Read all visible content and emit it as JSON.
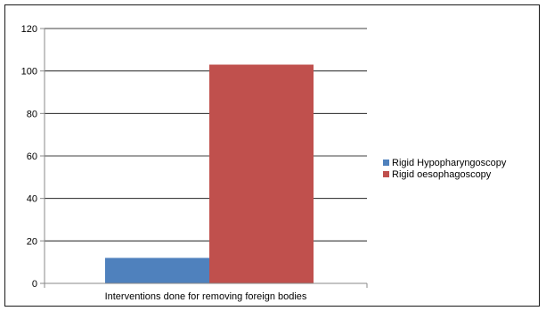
{
  "chart_data": {
    "type": "bar",
    "categories": [
      "Interventions done for removing foreign bodies"
    ],
    "series": [
      {
        "name": "Rigid Hypopharyngoscopy",
        "values": [
          12
        ],
        "color": "#4f81bd"
      },
      {
        "name": "Rigid oesophagoscopy",
        "values": [
          103
        ],
        "color": "#c0504d"
      }
    ],
    "ylim": [
      0,
      120
    ],
    "yticks": [
      0,
      20,
      40,
      60,
      80,
      100,
      120
    ],
    "grid": true,
    "legend_position": "right"
  }
}
